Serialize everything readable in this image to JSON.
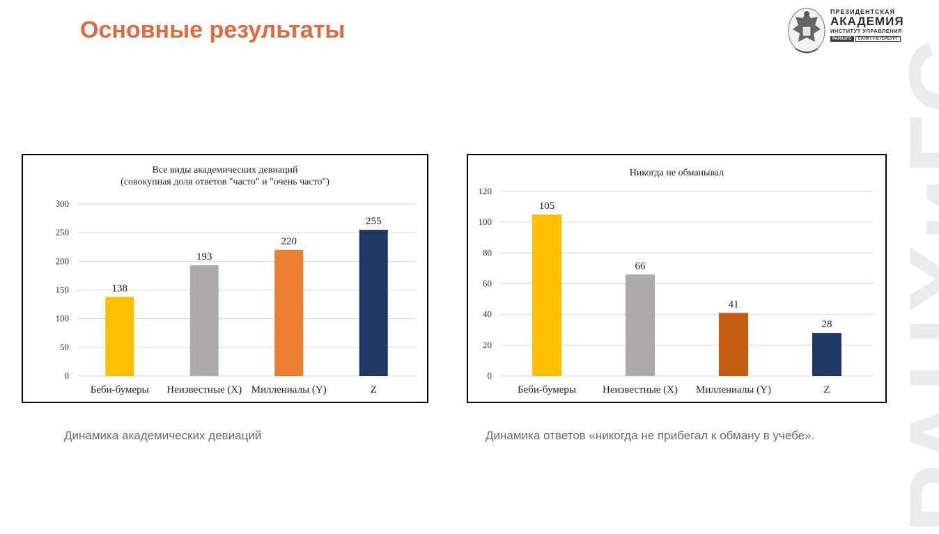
{
  "slide": {
    "title": "Основные результаты",
    "watermark": "РАНХиГС",
    "accent_color": "#E0693D"
  },
  "logo": {
    "line1": "ПРЕЗИДЕНТСКАЯ",
    "line2": "АКАДЕМИЯ",
    "line3": "ИНСТИТУТ УПРАВЛЕНИЯ",
    "tag1": "РАНХиГС",
    "tag2": "САНКТ-ПЕТЕРБУРГ",
    "icon": "eagle-emblem-icon"
  },
  "captions": {
    "left": "Динамика академических девиаций",
    "right": "Динамика ответов «никогда не прибегал к обману в учебе»."
  },
  "chart_data": [
    {
      "type": "bar",
      "title_lines": [
        "Все виды академических девиаций",
        "(совокупная доля ответов \"часто\" и \"очень часто\")"
      ],
      "categories": [
        "Беби-бумеры",
        "Неизвестные (X)",
        "Миллениалы (Y)",
        "Z"
      ],
      "values": [
        138,
        193,
        220,
        255
      ],
      "colors": [
        "#FFC000",
        "#AEAAAA",
        "#ED7D31",
        "#203864"
      ],
      "ylim": [
        0,
        300
      ],
      "yticks": [
        0,
        50,
        100,
        150,
        200,
        250,
        300
      ],
      "grid": true,
      "legend": "none"
    },
    {
      "type": "bar",
      "title_lines": [
        "Никогда не обманывал"
      ],
      "categories": [
        "Беби-бумеры",
        "Неизвестные (X)",
        "Миллениалы (Y)",
        "Z"
      ],
      "values": [
        105,
        66,
        41,
        28
      ],
      "colors": [
        "#FFC000",
        "#AEAAAA",
        "#C55A11",
        "#203864"
      ],
      "ylim": [
        0,
        120
      ],
      "yticks": [
        0,
        20,
        40,
        60,
        80,
        100,
        120
      ],
      "grid": true,
      "legend": "none"
    }
  ]
}
